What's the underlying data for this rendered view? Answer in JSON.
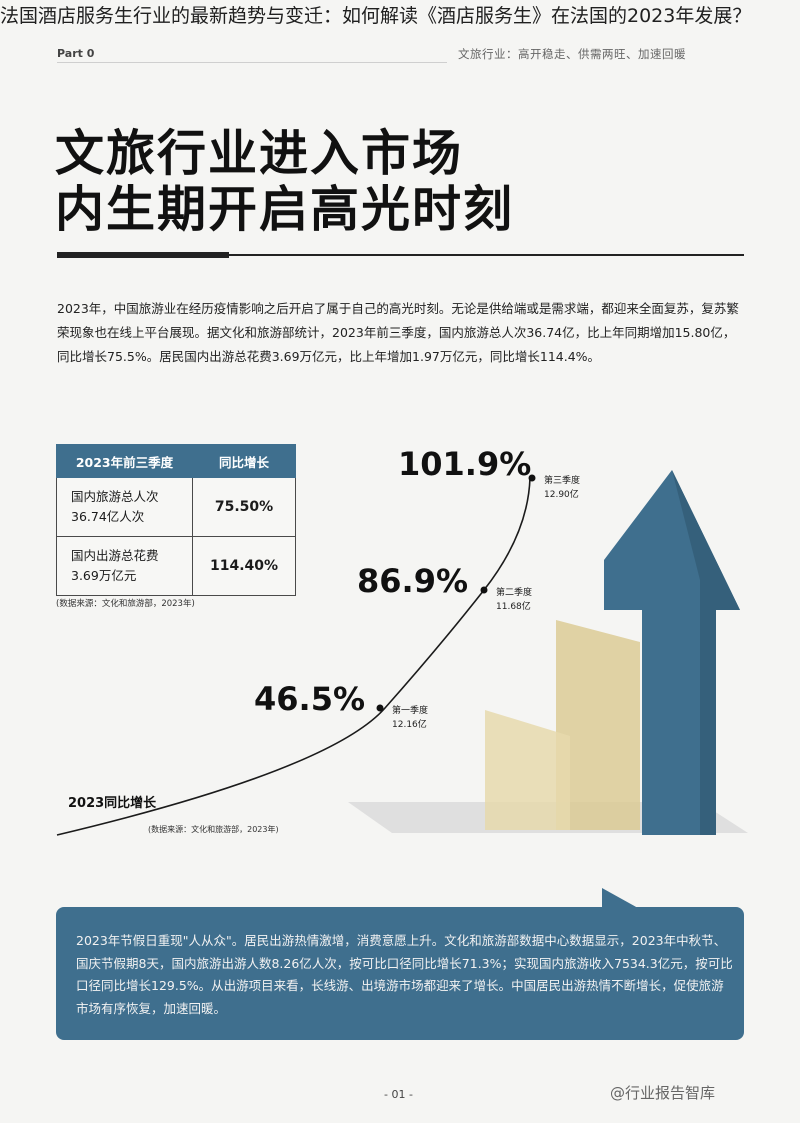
{
  "overlay_title": "法国酒店服务生行业的最新趋势与变迁：如何解读《酒店服务生》在法国的2023年发展？",
  "header": {
    "part_label": "Part 0",
    "tagline": "文旅行业：高开稳走、供需两旺、加速回暖"
  },
  "headline": {
    "line1": "文旅行业进入市场",
    "line2": "内生期开启高光时刻"
  },
  "intro": "2023年，中国旅游业在经历疫情影响之后开启了属于自己的高光时刻。无论是供给端或是需求端，都迎来全面复苏，复苏繁荣现象也在线上平台展现。据文化和旅游部统计，2023年前三季度，国内旅游总人次36.74亿，比上年同期增加15.80亿，同比增长75.5%。居民国内出游总花费3.69万亿元，比上年增加1.97万亿元，同比增长114.4%。",
  "table": {
    "headers": [
      "2023年前三季度",
      "同比增长"
    ],
    "rows": [
      {
        "label_line1": "国内旅游总人次",
        "label_line2": "36.74亿人次",
        "value": "75.50%"
      },
      {
        "label_line1": "国内出游总花费",
        "label_line2": "3.69万亿元",
        "value": "114.40%"
      }
    ],
    "source": "(数据来源：文化和旅游部，2023年)"
  },
  "chart_data": {
    "type": "line",
    "title": "2023同比增长",
    "source": "(数据来源：文化和旅游部，2023年)",
    "points": [
      {
        "quarter": "第一季度",
        "visitors": "12.16亿",
        "growth": 46.5,
        "growth_label": "46.5%"
      },
      {
        "quarter": "第二季度",
        "visitors": "11.68亿",
        "growth": 86.9,
        "growth_label": "86.9%"
      },
      {
        "quarter": "第三季度",
        "visitors": "12.90亿",
        "growth": 101.9,
        "growth_label": "101.9%"
      }
    ],
    "colors": {
      "arrow": "#3f6f8e",
      "bar_gold": "#d9bf7a",
      "line": "#1b1b1b"
    }
  },
  "banner": "2023年节假日重现\"人从众\"。居民出游热情激增，消费意愿上升。文化和旅游部数据中心数据显示，2023年中秋节、国庆节假期8天，国内旅游出游人数8.26亿人次，按可比口径同比增长71.3%；实现国内旅游收入7534.3亿元，按可比口径同比增长129.5%。从出游项目来看，长线游、出境游市场都迎来了增长。中国居民出游热情不断增长，促使旅游市场有序恢复，加速回暖。",
  "page_number": "- 01 -",
  "watermark": "@行业报告智库"
}
